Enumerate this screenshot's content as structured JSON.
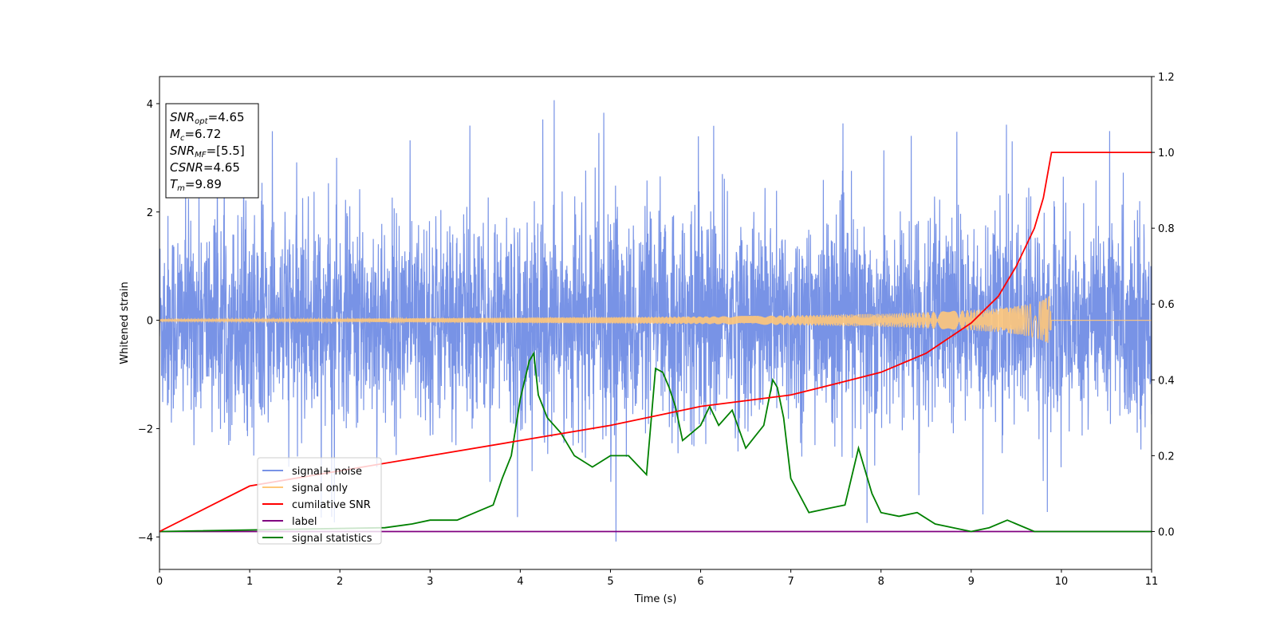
{
  "chart_data": {
    "type": "line",
    "xlabel": "Time (s)",
    "ylabel": "Whitened strain",
    "xlim": [
      0,
      11
    ],
    "ylim_left": [
      -4.6,
      4.5
    ],
    "ylim_right": [
      -0.1,
      1.2
    ],
    "x_ticks": [
      "0",
      "1",
      "2",
      "3",
      "4",
      "5",
      "6",
      "7",
      "8",
      "9",
      "10",
      "11"
    ],
    "y_left_ticks": [
      "−4",
      "−2",
      "0",
      "2",
      "4"
    ],
    "y_right_ticks": [
      "0.0",
      "0.2",
      "0.4",
      "0.6",
      "0.8",
      "1.0",
      "1.2"
    ],
    "grid": false,
    "legend_position": "lower-left",
    "series": [
      {
        "name": "signal+ noise",
        "color": "#7893e6",
        "axis": "left",
        "description_noise": {
          "std": 1.0,
          "extreme_max": 4.1,
          "extreme_min": -4.15
        }
      },
      {
        "name": "signal only",
        "color": "#ffc87a",
        "axis": "left",
        "chirp_envelope": {
          "x": [
            0,
            2,
            4,
            6,
            7,
            8,
            8.5,
            9,
            9.3,
            9.5,
            9.7,
            9.8,
            9.88,
            9.89
          ],
          "amp": [
            0.02,
            0.03,
            0.05,
            0.07,
            0.09,
            0.12,
            0.15,
            0.19,
            0.22,
            0.26,
            0.32,
            0.38,
            0.45,
            0.0
          ]
        }
      },
      {
        "name": "cumilative SNR",
        "color": "#ff0000",
        "axis": "right",
        "x": [
          0,
          1,
          2,
          3,
          4,
          5,
          6,
          7,
          7.5,
          8,
          8.5,
          9,
          9.3,
          9.5,
          9.7,
          9.8,
          9.89,
          11
        ],
        "y": [
          0.0,
          0.12,
          0.16,
          0.2,
          0.24,
          0.28,
          0.33,
          0.36,
          0.39,
          0.42,
          0.47,
          0.55,
          0.62,
          0.7,
          0.8,
          0.88,
          1.0,
          1.0
        ]
      },
      {
        "name": "label",
        "color": "#800080",
        "axis": "right",
        "x": [
          0,
          11
        ],
        "y": [
          0,
          0
        ]
      },
      {
        "name": "signal statistics",
        "color": "#008000",
        "axis": "right",
        "x": [
          0,
          2.5,
          2.8,
          3.0,
          3.3,
          3.5,
          3.7,
          3.8,
          3.9,
          4.0,
          4.1,
          4.15,
          4.2,
          4.3,
          4.45,
          4.6,
          4.8,
          5.0,
          5.2,
          5.4,
          5.5,
          5.58,
          5.65,
          5.72,
          5.8,
          5.9,
          6.0,
          6.1,
          6.2,
          6.35,
          6.5,
          6.6,
          6.7,
          6.8,
          6.85,
          6.92,
          7.0,
          7.2,
          7.4,
          7.6,
          7.75,
          7.9,
          8.0,
          8.2,
          8.4,
          8.6,
          8.8,
          9.0,
          9.2,
          9.4,
          9.5,
          9.7,
          10.0,
          11
        ],
        "y": [
          0.0,
          0.01,
          0.02,
          0.03,
          0.03,
          0.05,
          0.07,
          0.14,
          0.2,
          0.35,
          0.45,
          0.47,
          0.36,
          0.3,
          0.26,
          0.2,
          0.17,
          0.2,
          0.2,
          0.15,
          0.43,
          0.42,
          0.38,
          0.33,
          0.24,
          0.26,
          0.28,
          0.33,
          0.28,
          0.32,
          0.22,
          0.25,
          0.28,
          0.4,
          0.38,
          0.3,
          0.14,
          0.05,
          0.06,
          0.07,
          0.22,
          0.1,
          0.05,
          0.04,
          0.05,
          0.02,
          0.01,
          0.0,
          0.01,
          0.03,
          0.02,
          0.0,
          0.0,
          0.0
        ]
      }
    ],
    "annotation_lines": [
      {
        "key": "SNR",
        "sub": "opt",
        "value": "=4.65"
      },
      {
        "key": "M",
        "sub": "c",
        "value": "=6.72"
      },
      {
        "key": "SNR",
        "sub": "MF",
        "value": "=[5.5]"
      },
      {
        "key": "CSNR",
        "sub": "",
        "value": "=4.65"
      },
      {
        "key": "T",
        "sub": "m",
        "value": "=9.89"
      }
    ]
  }
}
